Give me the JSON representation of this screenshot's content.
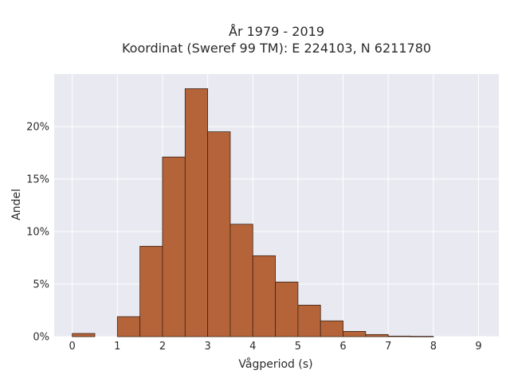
{
  "chart_data": {
    "type": "bar",
    "title_line1": "År 1979 - 2019",
    "title_line2": "Koordinat (Sweref 99 TM): E 224103, N 6211780",
    "xlabel": "Vågperiod (s)",
    "ylabel": "Andel",
    "bin_width": 0.5,
    "bins": [
      {
        "x0": 0.0,
        "value": 0.3
      },
      {
        "x0": 0.5,
        "value": 0.0
      },
      {
        "x0": 1.0,
        "value": 1.9
      },
      {
        "x0": 1.5,
        "value": 8.6
      },
      {
        "x0": 2.0,
        "value": 17.1
      },
      {
        "x0": 2.5,
        "value": 23.6
      },
      {
        "x0": 3.0,
        "value": 19.5
      },
      {
        "x0": 3.5,
        "value": 10.7
      },
      {
        "x0": 4.0,
        "value": 7.7
      },
      {
        "x0": 4.5,
        "value": 5.2
      },
      {
        "x0": 5.0,
        "value": 3.0
      },
      {
        "x0": 5.5,
        "value": 1.5
      },
      {
        "x0": 6.0,
        "value": 0.5
      },
      {
        "x0": 6.5,
        "value": 0.2
      },
      {
        "x0": 7.0,
        "value": 0.05
      },
      {
        "x0": 7.5,
        "value": 0.03
      }
    ],
    "xlim": [
      -0.4,
      9.45
    ],
    "ylim": [
      0,
      25
    ],
    "x_ticks": [
      "0",
      "1",
      "2",
      "3",
      "4",
      "5",
      "6",
      "7",
      "8",
      "9"
    ],
    "y_ticks": [
      "0%",
      "5%",
      "10%",
      "15%",
      "20%"
    ],
    "grid": true,
    "colors": {
      "bar_fill": "#b5643a",
      "bar_edge": "#3d2314",
      "plot_bg": "#e9e9f1",
      "grid": "#ffffff"
    }
  }
}
